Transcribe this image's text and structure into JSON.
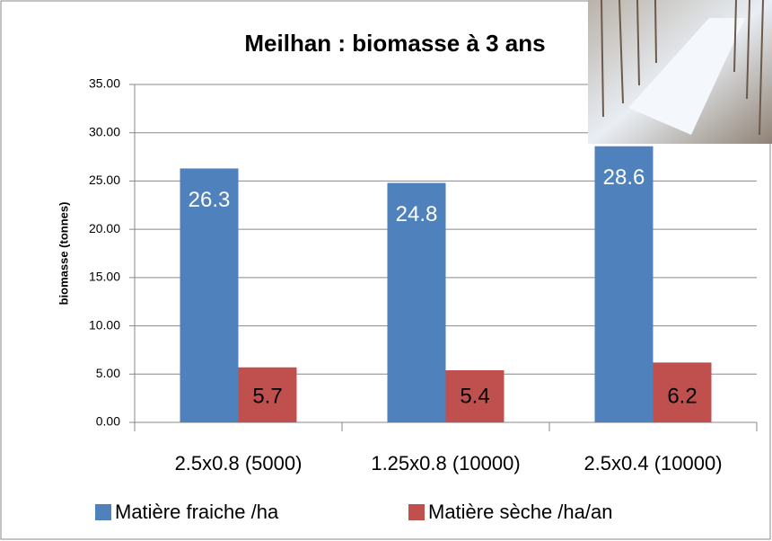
{
  "chart_data": {
    "type": "bar",
    "title": "Meilhan : biomasse à 3 ans",
    "y_label": "biomasse (tonnes)",
    "categories": [
      "2.5x0.8 (5000)",
      "1.25x0.8 (10000)",
      "2.5x0.4 (10000)"
    ],
    "series": [
      {
        "name": "Matière fraiche /ha",
        "color": "#4f81bd",
        "values": [
          26.3,
          24.8,
          28.6
        ]
      },
      {
        "name": "Matière sèche /ha/an",
        "color": "#c0504d",
        "values": [
          5.7,
          5.4,
          6.2
        ]
      }
    ],
    "ylim": [
      0,
      35
    ],
    "yticks": [
      {
        "value": 0,
        "label": "0.00"
      },
      {
        "value": 5,
        "label": "5.00"
      },
      {
        "value": 10,
        "label": "10.00"
      },
      {
        "value": 15,
        "label": "15.00"
      },
      {
        "value": 20,
        "label": "20.00"
      },
      {
        "value": 25,
        "label": "25.00"
      },
      {
        "value": 30,
        "label": "30.00"
      },
      {
        "value": 35,
        "label": "35.00"
      }
    ],
    "grid": true,
    "legend": "bottom"
  }
}
